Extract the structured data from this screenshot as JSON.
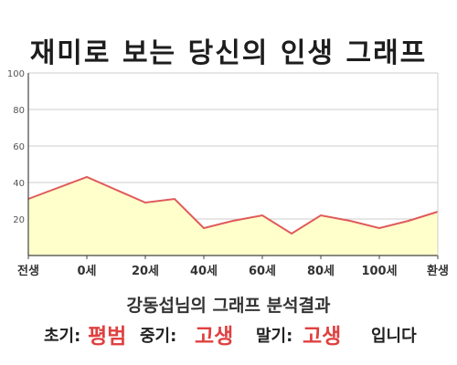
{
  "header": {
    "title": "재미로 보는 당신의 인생 그래프"
  },
  "chart_data": {
    "type": "area",
    "title": "재미로 보는 당신의 인생 그래프",
    "y_ticks": [
      "100",
      "80",
      "60",
      "40",
      "20"
    ],
    "ylim": [
      0,
      100
    ],
    "x_tick_labels": [
      "전생",
      "0세",
      "20세",
      "40세",
      "60세",
      "80세",
      "100세",
      "환생"
    ],
    "x_tick_values": [
      -20,
      0,
      20,
      40,
      60,
      80,
      100,
      120
    ],
    "xlim": [
      -20,
      120
    ],
    "series": [
      {
        "x": [
          -20,
          0,
          20,
          30,
          40,
          50,
          60,
          70,
          80,
          90,
          100,
          110,
          120
        ],
        "values": [
          31,
          43,
          29,
          31,
          15,
          19,
          22,
          12,
          22,
          19,
          15,
          19,
          24
        ]
      }
    ],
    "grid": true,
    "colors": {
      "fill": "#ffffcc",
      "line": "#e05a5a",
      "grid": "#cccccc",
      "axis": "#444444"
    }
  },
  "result": {
    "subtitle": "강동섭님의 그래프 분석결과",
    "early_label": "초기:",
    "early_value": "평범",
    "middle_label": "중기:",
    "middle_value": "고생",
    "late_label": "말기:",
    "late_value": "고생",
    "suffix": "입니다"
  }
}
